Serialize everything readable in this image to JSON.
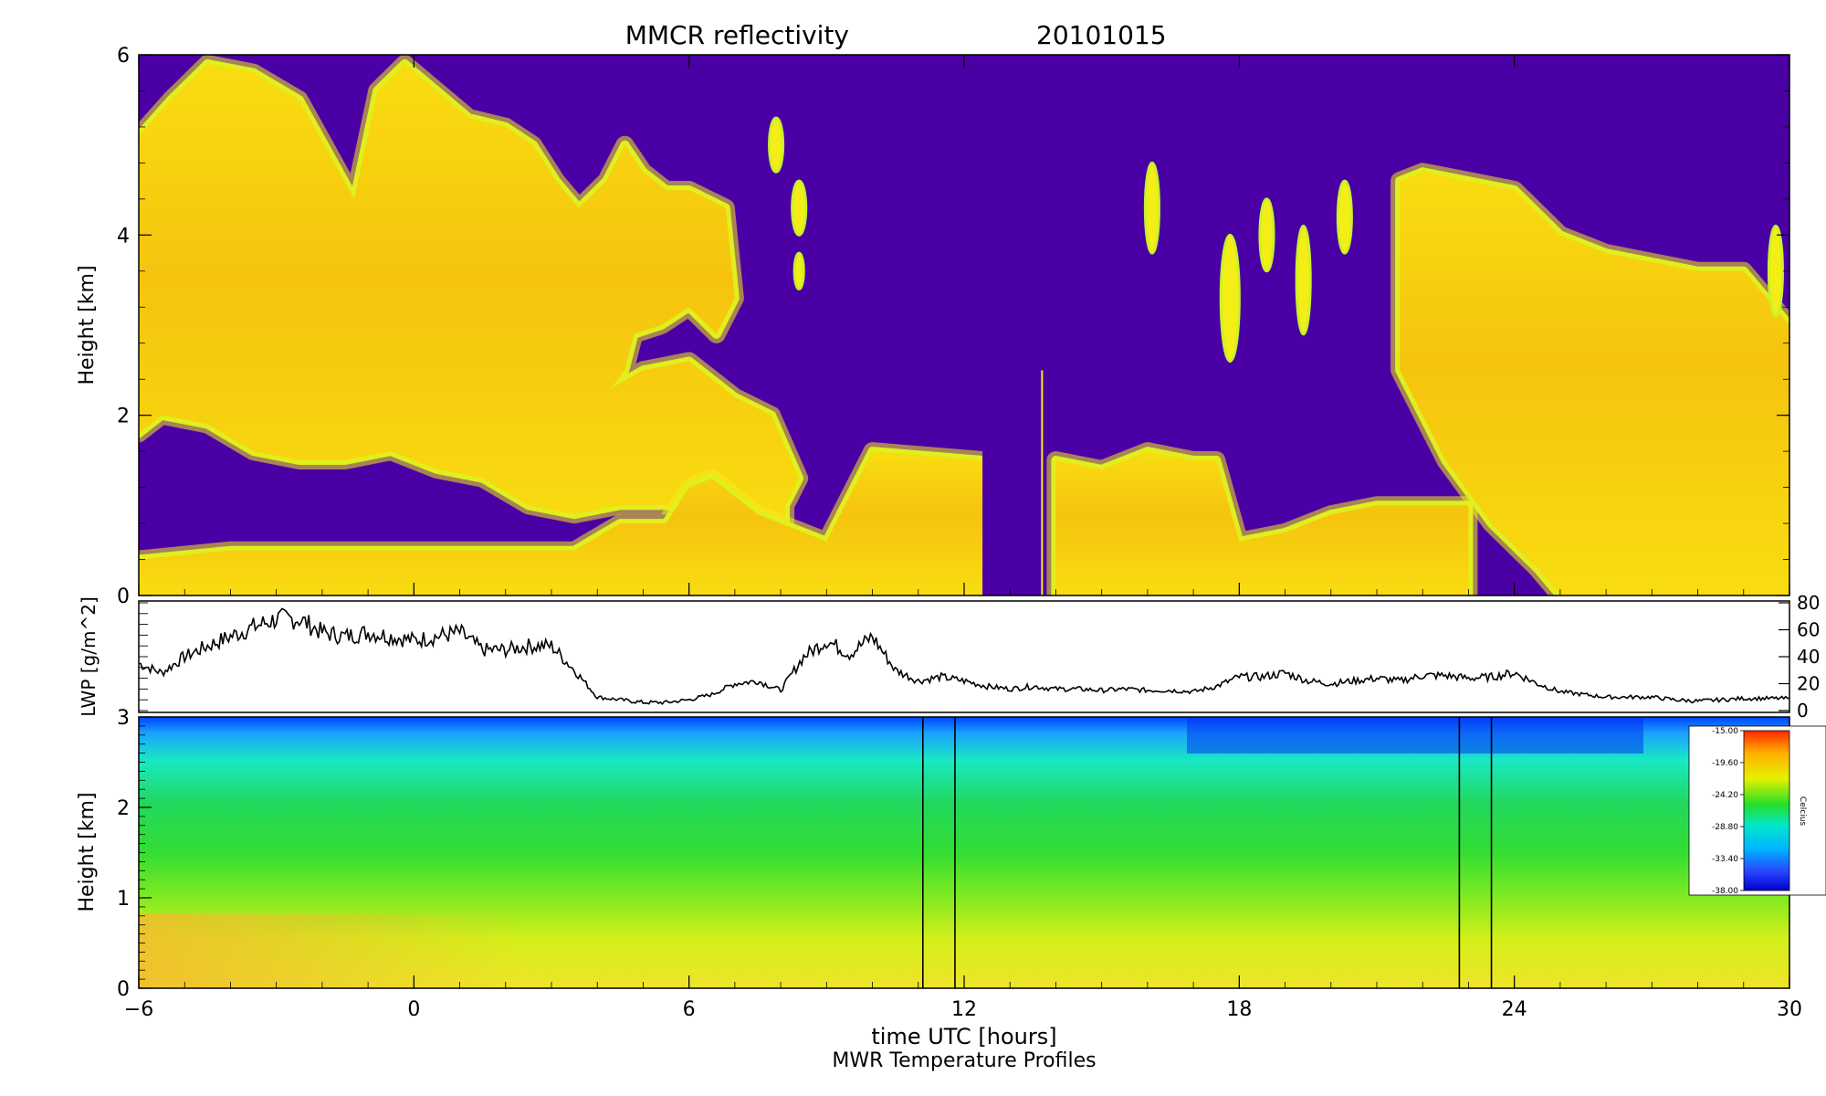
{
  "chart_data": [
    {
      "type": "heatmap",
      "title": "MMCR reflectivity",
      "date": "20101015",
      "ylabel": "Height [km]",
      "xlim": [
        -6,
        30
      ],
      "ylim": [
        0,
        6
      ],
      "yticks": [
        0,
        2,
        4,
        6
      ],
      "background_color": "#4a00a4",
      "colors": {
        "cloud_edge": "#c8f22a",
        "cloud_outer": "#f5ee16",
        "cloud_mid": "#fcd00c",
        "cloud_core": "#f7a20a"
      },
      "cloud_layers": [
        {
          "label": "upper",
          "top": [
            [
              -6,
              5.1
            ],
            [
              -5.3,
              5.5
            ],
            [
              -4.5,
              5.9
            ],
            [
              -3.5,
              5.8
            ],
            [
              -2.5,
              5.5
            ],
            [
              -1.3,
              4.4
            ],
            [
              -0.8,
              5.6
            ],
            [
              -0.2,
              5.9
            ],
            [
              0.5,
              5.6
            ],
            [
              1.2,
              5.3
            ],
            [
              2,
              5.2
            ],
            [
              2.6,
              5.0
            ],
            [
              3.1,
              4.6
            ],
            [
              3.6,
              4.3
            ],
            [
              4.2,
              4.6
            ],
            [
              4.6,
              5.0
            ],
            [
              5,
              4.7
            ],
            [
              5.5,
              4.5
            ],
            [
              6,
              4.5
            ],
            [
              6.8,
              4.3
            ],
            [
              7,
              3.3
            ],
            [
              6.6,
              2.9
            ],
            [
              6,
              3.2
            ],
            [
              5.4,
              3.0
            ],
            [
              4.8,
              2.9
            ],
            [
              4.6,
              2.5
            ],
            [
              4.3,
              2.3
            ],
            [
              5,
              2.5
            ],
            [
              6,
              2.6
            ],
            [
              7,
              2.2
            ],
            [
              7.8,
              2.0
            ],
            [
              8.4,
              1.3
            ],
            [
              8.1,
              1.0
            ]
          ],
          "bottom": [
            [
              -6,
              1.8
            ],
            [
              -5.5,
              2.0
            ],
            [
              -4.5,
              1.9
            ],
            [
              -3.5,
              1.6
            ],
            [
              -2.5,
              1.5
            ],
            [
              -1.5,
              1.5
            ],
            [
              -0.5,
              1.6
            ],
            [
              0.5,
              1.4
            ],
            [
              1.5,
              1.3
            ],
            [
              2.5,
              1.0
            ],
            [
              3.5,
              0.9
            ],
            [
              4.5,
              1.0
            ],
            [
              5.5,
              1.0
            ],
            [
              6.5,
              0.9
            ],
            [
              7.5,
              0.7
            ],
            [
              8.1,
              0.6
            ]
          ]
        },
        {
          "label": "low",
          "top": [
            [
              -6,
              0.4
            ],
            [
              -4,
              0.5
            ],
            [
              -2,
              0.5
            ],
            [
              0,
              0.5
            ],
            [
              2,
              0.5
            ],
            [
              3.5,
              0.5
            ],
            [
              4.5,
              0.8
            ],
            [
              5.5,
              0.8
            ],
            [
              6,
              1.2
            ],
            [
              6.5,
              1.3
            ],
            [
              7.5,
              0.9
            ],
            [
              9,
              0.6
            ],
            [
              10,
              1.6
            ],
            [
              12.4,
              1.5
            ]
          ],
          "bottom": [
            [
              -6,
              0
            ],
            [
              12.4,
              0
            ]
          ]
        },
        {
          "label": "mid",
          "top": [
            [
              14,
              1.5
            ],
            [
              15,
              1.4
            ],
            [
              16,
              1.6
            ],
            [
              17,
              1.5
            ],
            [
              17.5,
              1.5
            ],
            [
              18,
              0.6
            ],
            [
              19,
              0.7
            ],
            [
              20,
              0.9
            ],
            [
              21,
              1.0
            ],
            [
              23,
              1.0
            ]
          ],
          "bottom": [
            [
              14,
              0
            ],
            [
              23,
              0
            ]
          ]
        },
        {
          "label": "right",
          "top": [
            [
              21.5,
              4.6
            ],
            [
              22,
              4.7
            ],
            [
              23,
              4.6
            ],
            [
              24,
              4.5
            ],
            [
              25,
              4.0
            ],
            [
              26,
              3.8
            ],
            [
              27,
              3.7
            ],
            [
              28,
              3.6
            ],
            [
              29,
              3.6
            ],
            [
              30,
              3.0
            ]
          ],
          "bottom": [
            [
              21.5,
              2.5
            ],
            [
              22.5,
              1.5
            ],
            [
              23.5,
              0.8
            ],
            [
              24.5,
              0.3
            ],
            [
              25,
              0
            ],
            [
              30,
              0
            ]
          ]
        }
      ],
      "isolated_cells": [
        [
          7.9,
          5.0,
          0.15,
          0.3
        ],
        [
          8.4,
          4.3,
          0.15,
          0.3
        ],
        [
          8.4,
          3.6,
          0.1,
          0.2
        ],
        [
          16.1,
          4.3,
          0.15,
          0.5
        ],
        [
          17.8,
          3.3,
          0.2,
          0.7
        ],
        [
          18.6,
          4.0,
          0.15,
          0.4
        ],
        [
          19.4,
          3.5,
          0.15,
          0.6
        ],
        [
          20.3,
          4.2,
          0.15,
          0.4
        ],
        [
          29.7,
          3.6,
          0.15,
          0.5
        ]
      ],
      "data_gap": [
        12.4,
        13.7
      ],
      "gap_spike_x": 13.7
    },
    {
      "type": "line",
      "ylabel": "LWP [g/m^2]",
      "xlim": [
        -6,
        30
      ],
      "ylim": [
        0,
        80
      ],
      "yticks": [
        0,
        20,
        40,
        60,
        80
      ],
      "x": [
        -6,
        -5.5,
        -5,
        -4.5,
        -4,
        -3.5,
        -3,
        -2.5,
        -2,
        -1.5,
        -1,
        -0.5,
        0,
        0.5,
        1,
        1.5,
        2,
        2.5,
        3,
        3.5,
        4,
        4.5,
        5,
        5.5,
        6,
        6.5,
        7,
        7.5,
        8,
        8.5,
        9,
        9.5,
        10,
        10.5,
        11,
        11.5,
        12,
        12.5,
        13,
        13.5,
        14,
        14.5,
        15,
        15.5,
        16,
        16.5,
        17,
        17.5,
        18,
        18.5,
        19,
        19.5,
        20,
        20.5,
        21,
        21.5,
        22,
        22.5,
        23,
        23.5,
        24,
        24.5,
        25,
        25.5,
        26,
        26.5,
        27,
        27.5,
        28,
        28.5,
        29,
        29.5,
        30
      ],
      "values": [
        35,
        28,
        40,
        48,
        55,
        62,
        68,
        68,
        58,
        55,
        58,
        55,
        52,
        55,
        58,
        45,
        45,
        48,
        48,
        30,
        10,
        8,
        6,
        6,
        8,
        12,
        20,
        22,
        15,
        40,
        52,
        42,
        55,
        30,
        22,
        25,
        22,
        18,
        16,
        18,
        16,
        16,
        15,
        16,
        15,
        15,
        14,
        18,
        25,
        25,
        28,
        22,
        20,
        22,
        24,
        22,
        26,
        26,
        24,
        25,
        28,
        20,
        14,
        12,
        10,
        10,
        10,
        8,
        7,
        8,
        9,
        9,
        9
      ]
    },
    {
      "type": "heatmap",
      "xlabel": "time UTC [hours]",
      "subtitle": "MWR Temperature Profiles",
      "ylabel": "Height [km]",
      "xlim": [
        -6,
        30
      ],
      "ylim": [
        0,
        3
      ],
      "yticks": [
        0,
        1,
        2,
        3
      ],
      "xticks": [
        -6,
        0,
        6,
        12,
        18,
        24,
        30
      ],
      "xtick_labels": [
        "−6",
        "0",
        "6",
        "12",
        "18",
        "24",
        "30"
      ],
      "gradient_stops": [
        [
          "0%",
          "#0044ff"
        ],
        [
          "6%",
          "#1aa2ff"
        ],
        [
          "16%",
          "#19e8c4"
        ],
        [
          "32%",
          "#22d85c"
        ],
        [
          "50%",
          "#33dd33"
        ],
        [
          "66%",
          "#7eea22"
        ],
        [
          "82%",
          "#d5ef1a"
        ],
        [
          "100%",
          "#efe42a"
        ]
      ],
      "vertical_lines": [
        11.1,
        11.8,
        22.8,
        23.5
      ],
      "colorbar": {
        "label": "Celcius",
        "ticks": [
          "-15.00",
          "-19.60",
          "-24.20",
          "-28.80",
          "-33.40",
          "-38.00"
        ],
        "gradient_stops": [
          [
            "0%",
            "#ff2800"
          ],
          [
            "14%",
            "#ffb000"
          ],
          [
            "30%",
            "#e6f000"
          ],
          [
            "46%",
            "#26e026"
          ],
          [
            "60%",
            "#00e6d0"
          ],
          [
            "74%",
            "#00b4ff"
          ],
          [
            "88%",
            "#2846ff"
          ],
          [
            "100%",
            "#0000cc"
          ]
        ]
      }
    }
  ]
}
